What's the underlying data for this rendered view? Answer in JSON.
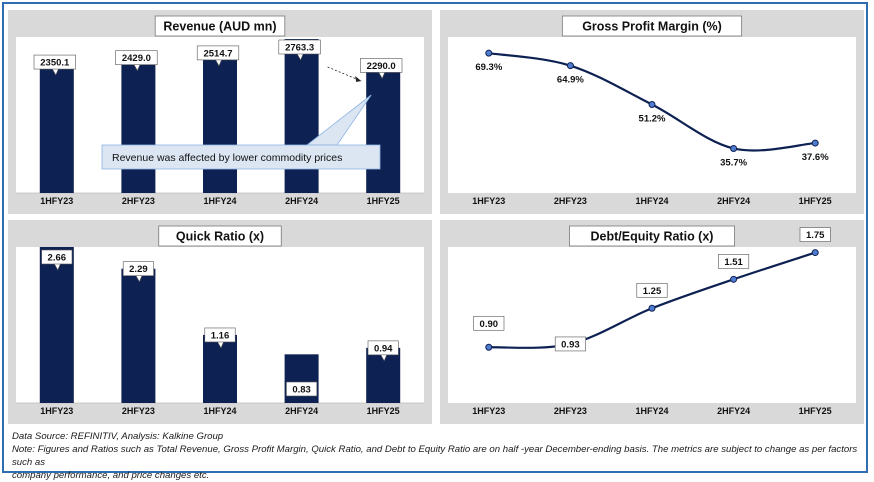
{
  "colors": {
    "bar": "#0d2152",
    "line": "#0d2152",
    "marker": "#4f7ccf",
    "panel_bg": "#d9d9d9",
    "border": "#2f6db3",
    "callout_bg": "#dce6f2",
    "callout_border": "#8eb4e3"
  },
  "chart_data": [
    {
      "type": "bar",
      "title": "Revenue (AUD mn)",
      "categories": [
        "1HFY23",
        "2HFY23",
        "1HFY24",
        "2HFY24",
        "1HFY25"
      ],
      "values": [
        2350.1,
        2429.0,
        2514.7,
        2763.3,
        2290.0
      ],
      "value_labels": [
        "2350.1",
        "2429.0",
        "2514.7",
        "2763.3",
        "2290.0"
      ],
      "ylim": [
        0,
        2800
      ],
      "annotation": "Revenue was affected by lower commodity prices",
      "grid": false
    },
    {
      "type": "line",
      "title": "Gross Profit Margin (%)",
      "categories": [
        "1HFY23",
        "2HFY23",
        "1HFY24",
        "2HFY24",
        "1HFY25"
      ],
      "values": [
        69.3,
        64.9,
        51.2,
        35.7,
        37.6
      ],
      "value_labels": [
        "69.3%",
        "64.9%",
        "51.2%",
        "35.7%",
        "37.6%"
      ],
      "ylim": [
        20,
        75
      ],
      "grid": false
    },
    {
      "type": "bar",
      "title": "Quick Ratio (x)",
      "categories": [
        "1HFY23",
        "2HFY23",
        "1HFY24",
        "2HFY24",
        "1HFY25"
      ],
      "values": [
        2.66,
        2.29,
        1.16,
        0.83,
        0.94
      ],
      "value_labels": [
        "2.66",
        "2.29",
        "1.16",
        "0.83",
        "0.94"
      ],
      "ylim": [
        0,
        2.66
      ],
      "grid": false
    },
    {
      "type": "line",
      "title": "Debt/Equity Ratio (x)",
      "categories": [
        "1HFY23",
        "2HFY23",
        "1HFY24",
        "2HFY24",
        "1HFY25"
      ],
      "values": [
        0.9,
        0.93,
        1.25,
        1.51,
        1.75
      ],
      "value_labels": [
        "0.90",
        "0.93",
        "1.25",
        "1.51",
        "1.75"
      ],
      "ylim": [
        0.4,
        1.8
      ],
      "grid": false
    }
  ],
  "footer": {
    "source": "Data Source: REFINITIV, Analysis: Kalkine Group",
    "note_line1": "Note: Figures and Ratios such as Total Revenue, Gross Profit Margin, Quick Ratio, and Debt to Equity Ratio are on half -year December-ending basis. The metrics are subject to change as per factors such as",
    "note_line2": "company performance, and price changes etc."
  }
}
